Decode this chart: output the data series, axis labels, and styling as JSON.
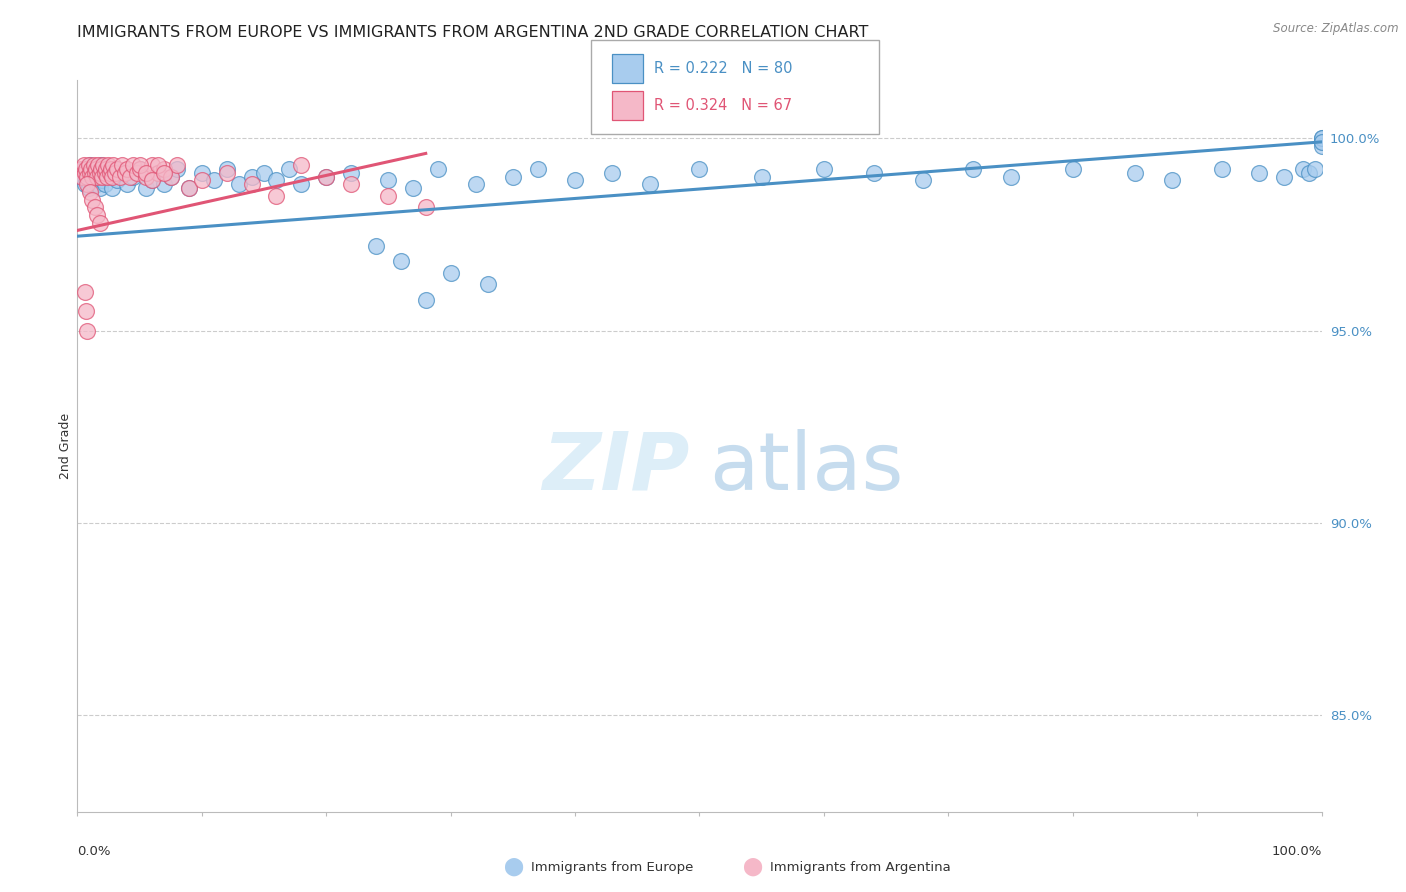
{
  "title": "IMMIGRANTS FROM EUROPE VS IMMIGRANTS FROM ARGENTINA 2ND GRADE CORRELATION CHART",
  "source": "Source: ZipAtlas.com",
  "ylabel": "2nd Grade",
  "ytick_labels": [
    "100.0%",
    "95.0%",
    "90.0%",
    "85.0%"
  ],
  "ytick_values": [
    1.0,
    0.95,
    0.9,
    0.85
  ],
  "xlim": [
    0.0,
    1.0
  ],
  "ylim": [
    0.825,
    1.015
  ],
  "legend_blue_label": "Immigrants from Europe",
  "legend_pink_label": "Immigrants from Argentina",
  "legend_r_blue": "R = 0.222",
  "legend_n_blue": "N = 80",
  "legend_r_pink": "R = 0.324",
  "legend_n_pink": "N = 67",
  "blue_color": "#a8ccee",
  "pink_color": "#f5b8c8",
  "trend_blue_color": "#4a90c4",
  "trend_pink_color": "#e05575",
  "blue_scatter_x": [
    0.003,
    0.005,
    0.006,
    0.007,
    0.008,
    0.009,
    0.01,
    0.011,
    0.012,
    0.013,
    0.014,
    0.015,
    0.016,
    0.017,
    0.018,
    0.019,
    0.02,
    0.021,
    0.022,
    0.025,
    0.028,
    0.03,
    0.032,
    0.035,
    0.04,
    0.045,
    0.05,
    0.055,
    0.06,
    0.065,
    0.07,
    0.075,
    0.08,
    0.09,
    0.1,
    0.11,
    0.12,
    0.13,
    0.14,
    0.15,
    0.16,
    0.17,
    0.18,
    0.2,
    0.22,
    0.25,
    0.27,
    0.29,
    0.32,
    0.35,
    0.37,
    0.4,
    0.43,
    0.46,
    0.5,
    0.55,
    0.6,
    0.64,
    0.68,
    0.72,
    0.75,
    0.8,
    0.85,
    0.88,
    0.92,
    0.95,
    0.97,
    0.985,
    0.99,
    0.995,
    1.0,
    1.0,
    1.0,
    1.0,
    1.0,
    0.24,
    0.26,
    0.3,
    0.33,
    0.28
  ],
  "blue_scatter_y": [
    0.99,
    0.992,
    0.988,
    0.991,
    0.989,
    0.987,
    0.993,
    0.99,
    0.988,
    0.992,
    0.989,
    0.991,
    0.988,
    0.99,
    0.987,
    0.993,
    0.989,
    0.991,
    0.988,
    0.99,
    0.987,
    0.992,
    0.989,
    0.991,
    0.988,
    0.99,
    0.992,
    0.987,
    0.989,
    0.991,
    0.988,
    0.99,
    0.992,
    0.987,
    0.991,
    0.989,
    0.992,
    0.988,
    0.99,
    0.991,
    0.989,
    0.992,
    0.988,
    0.99,
    0.991,
    0.989,
    0.987,
    0.992,
    0.988,
    0.99,
    0.992,
    0.989,
    0.991,
    0.988,
    0.992,
    0.99,
    0.992,
    0.991,
    0.989,
    0.992,
    0.99,
    0.992,
    0.991,
    0.989,
    0.992,
    0.991,
    0.99,
    0.992,
    0.991,
    0.992,
    1.0,
    0.999,
    0.998,
    1.0,
    0.999,
    0.972,
    0.968,
    0.965,
    0.962,
    0.958
  ],
  "pink_scatter_x": [
    0.003,
    0.004,
    0.005,
    0.006,
    0.007,
    0.008,
    0.009,
    0.01,
    0.011,
    0.012,
    0.013,
    0.014,
    0.015,
    0.016,
    0.017,
    0.018,
    0.019,
    0.02,
    0.021,
    0.022,
    0.023,
    0.024,
    0.025,
    0.026,
    0.027,
    0.028,
    0.029,
    0.03,
    0.032,
    0.034,
    0.036,
    0.038,
    0.04,
    0.042,
    0.045,
    0.048,
    0.05,
    0.055,
    0.06,
    0.065,
    0.07,
    0.075,
    0.08,
    0.09,
    0.1,
    0.12,
    0.14,
    0.16,
    0.18,
    0.2,
    0.22,
    0.25,
    0.28,
    0.05,
    0.055,
    0.06,
    0.065,
    0.07,
    0.008,
    0.01,
    0.012,
    0.014,
    0.016,
    0.018,
    0.006,
    0.007,
    0.008
  ],
  "pink_scatter_y": [
    0.992,
    0.99,
    0.993,
    0.991,
    0.992,
    0.99,
    0.993,
    0.991,
    0.992,
    0.99,
    0.993,
    0.991,
    0.992,
    0.99,
    0.993,
    0.991,
    0.992,
    0.99,
    0.993,
    0.991,
    0.992,
    0.99,
    0.993,
    0.991,
    0.992,
    0.99,
    0.993,
    0.991,
    0.992,
    0.99,
    0.993,
    0.991,
    0.992,
    0.99,
    0.993,
    0.991,
    0.992,
    0.99,
    0.993,
    0.991,
    0.992,
    0.99,
    0.993,
    0.987,
    0.989,
    0.991,
    0.988,
    0.985,
    0.993,
    0.99,
    0.988,
    0.985,
    0.982,
    0.993,
    0.991,
    0.989,
    0.993,
    0.991,
    0.988,
    0.986,
    0.984,
    0.982,
    0.98,
    0.978,
    0.96,
    0.955,
    0.95
  ],
  "blue_trend_x": [
    0.0,
    1.0
  ],
  "blue_trend_y": [
    0.9745,
    0.999
  ],
  "pink_trend_x": [
    0.0,
    0.28
  ],
  "pink_trend_y": [
    0.976,
    0.996
  ],
  "grid_color": "#cccccc",
  "title_fontsize": 11.5,
  "axis_label_fontsize": 9,
  "tick_label_fontsize": 9.5
}
